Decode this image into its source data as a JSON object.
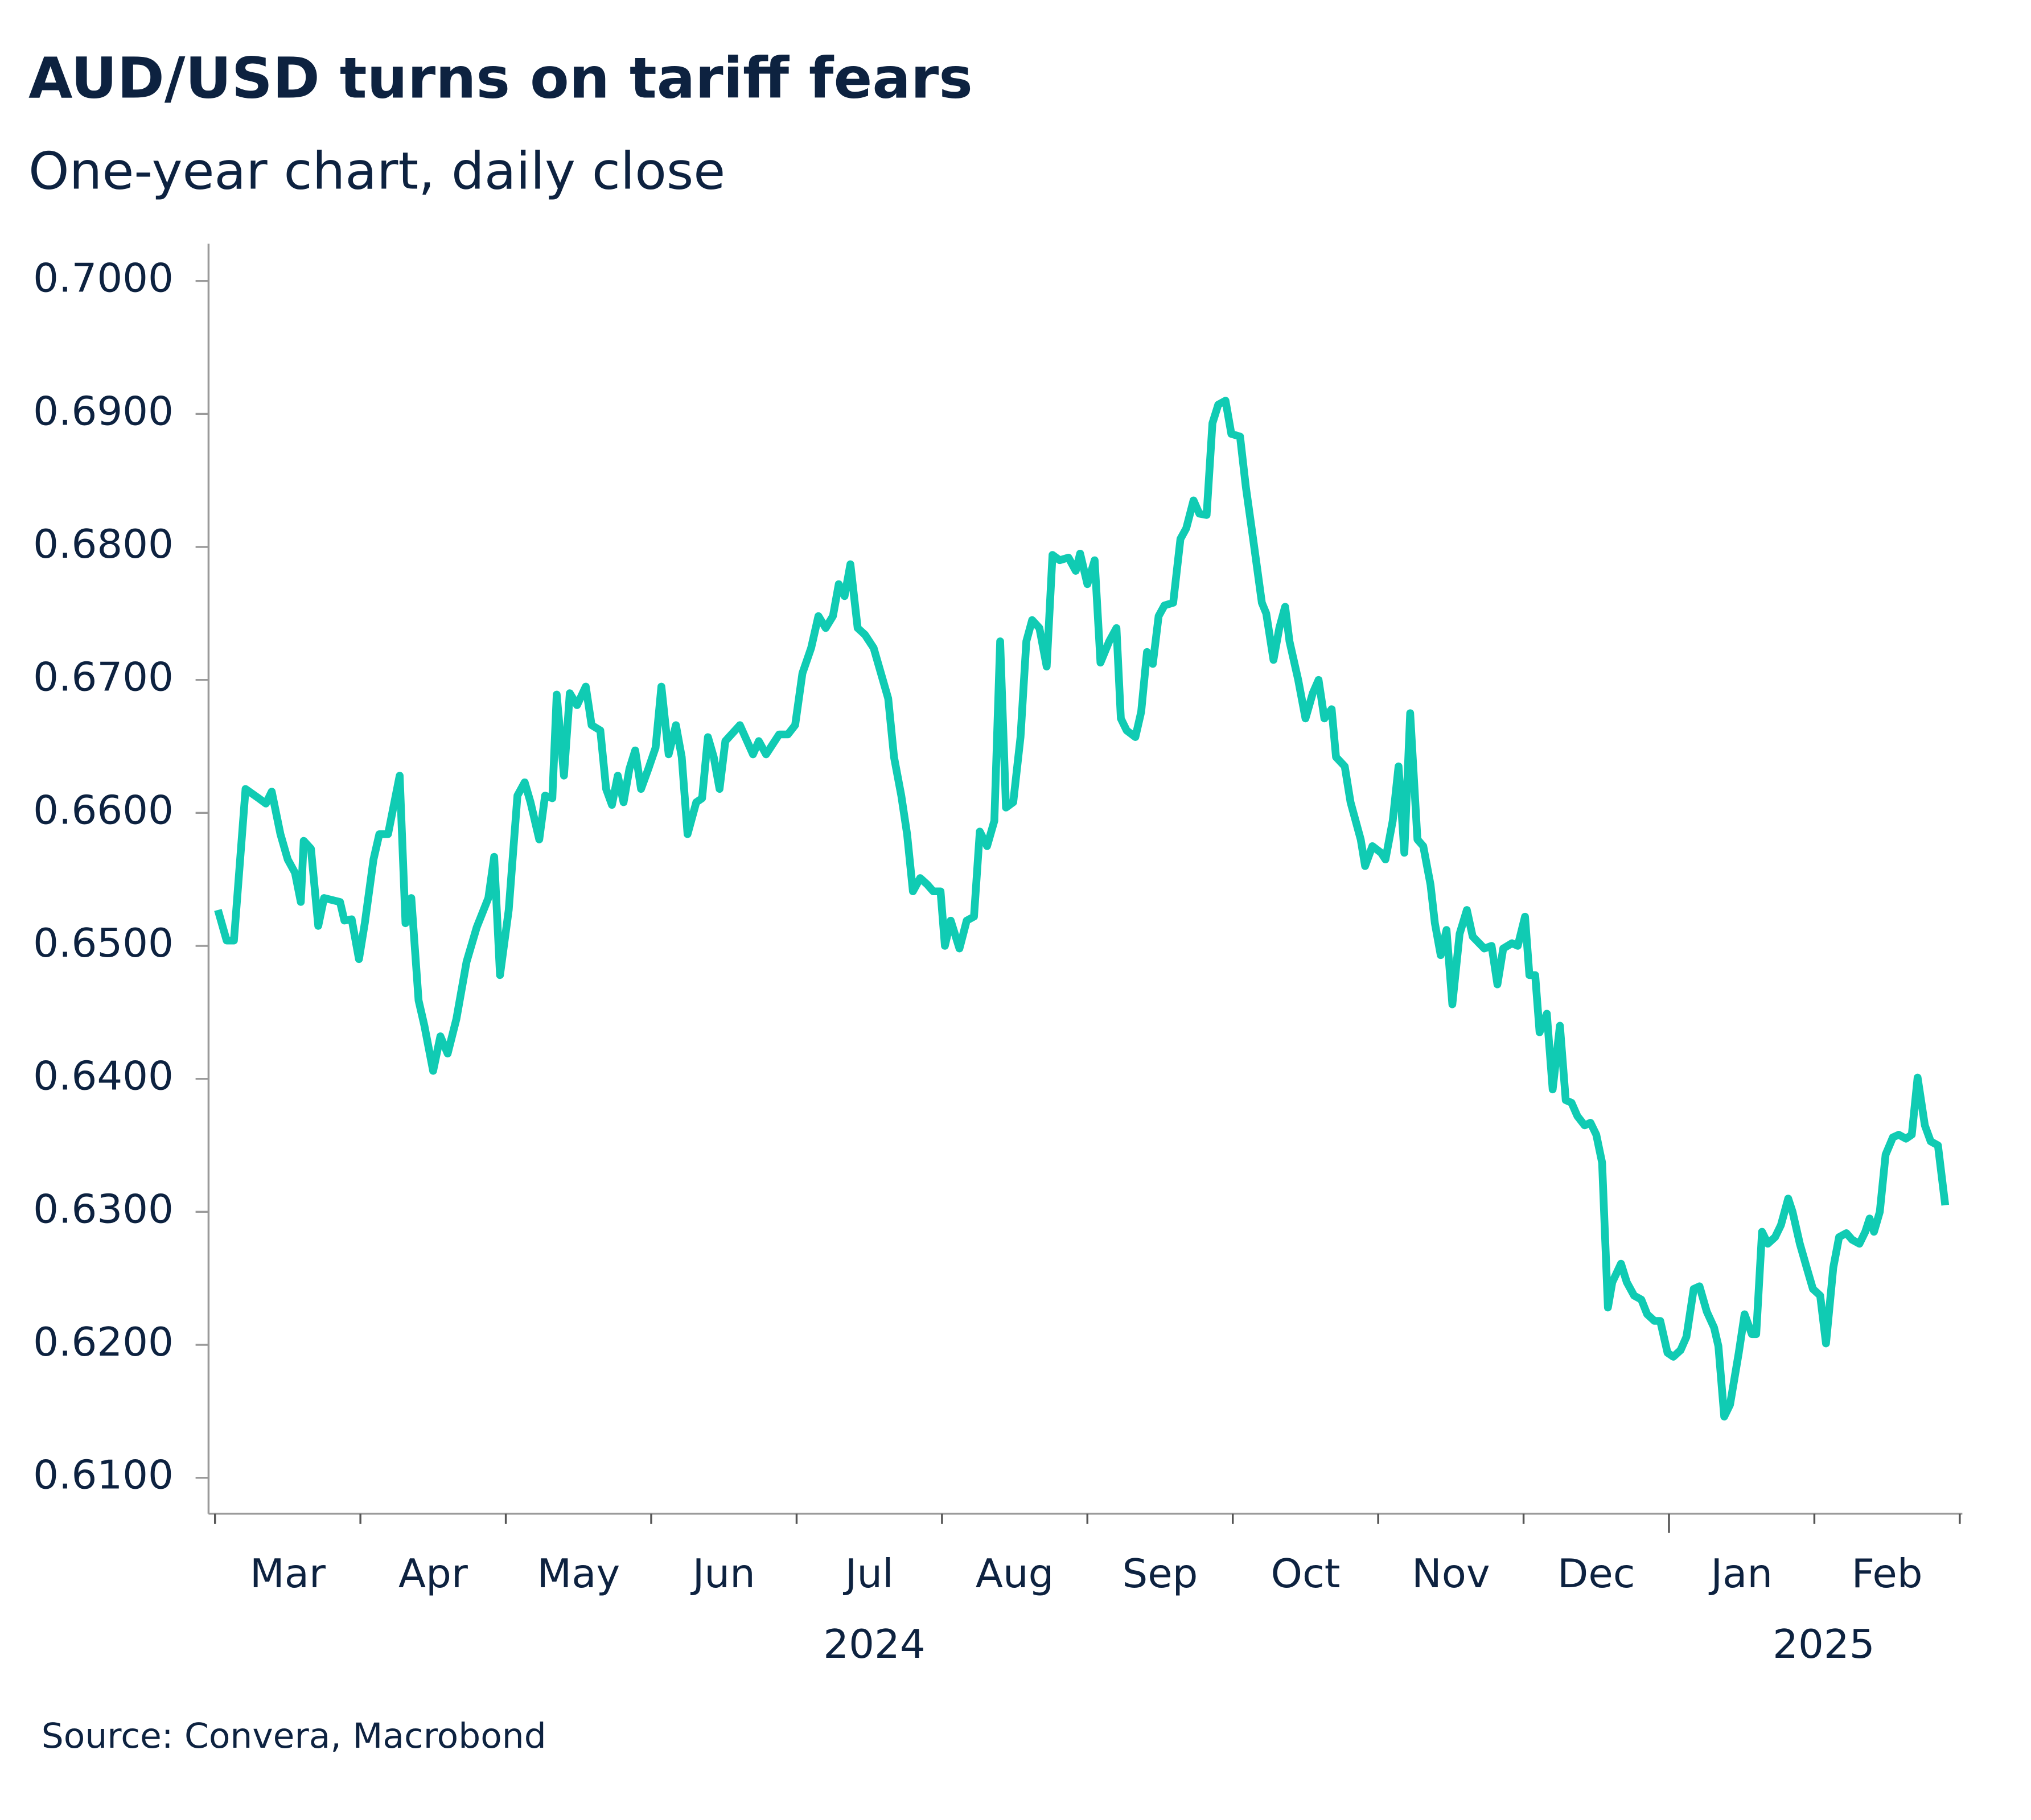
{
  "chart_data": {
    "type": "line",
    "title": "AUD/USD turns on tariff fears",
    "subtitle": "One-year chart, daily close",
    "source": "Source: Convera, Macrobond",
    "color": "#10cbb3",
    "x": [
      0.02,
      0.08,
      0.13,
      0.21,
      0.3,
      0.35,
      0.39,
      0.45,
      0.5,
      0.55,
      0.59,
      0.61,
      0.66,
      0.71,
      0.75,
      0.86,
      0.89,
      0.94,
      0.99,
      1.03,
      1.09,
      1.13,
      1.19,
      1.27,
      1.31,
      1.35,
      1.4,
      1.44,
      1.5,
      1.55,
      1.6,
      1.66,
      1.73,
      1.8,
      1.88,
      1.92,
      1.96,
      2.02,
      2.08,
      2.13,
      2.17,
      2.23,
      2.27,
      2.32,
      2.35,
      2.4,
      2.44,
      2.49,
      2.55,
      2.59,
      2.65,
      2.69,
      2.73,
      2.77,
      2.81,
      2.85,
      2.89,
      2.93,
      2.98,
      3.03,
      3.07,
      3.12,
      3.17,
      3.21,
      3.25,
      3.31,
      3.35,
      3.39,
      3.43,
      3.47,
      3.51,
      3.61,
      3.7,
      3.74,
      3.79,
      3.88,
      3.94,
      3.99,
      4.04,
      4.1,
      4.15,
      4.2,
      4.25,
      4.29,
      4.33,
      4.37,
      4.42,
      4.47,
      4.53,
      4.58,
      4.63,
      4.67,
      4.72,
      4.76,
      4.8,
      4.85,
      4.9,
      4.94,
      4.99,
      5.02,
      5.06,
      5.12,
      5.17,
      5.22,
      5.26,
      5.31,
      5.36,
      5.4,
      5.44,
      5.49,
      5.54,
      5.58,
      5.62,
      5.67,
      5.72,
      5.76,
      5.81,
      5.87,
      5.92,
      5.95,
      6.0,
      6.05,
      6.09,
      6.15,
      6.2,
      6.23,
      6.27,
      6.33,
      6.37,
      6.41,
      6.45,
      6.49,
      6.53,
      6.59,
      6.64,
      6.68,
      6.73,
      6.77,
      6.82,
      6.86,
      6.9,
      6.95,
      6.99,
      7.05,
      7.09,
      7.14,
      7.2,
      7.23,
      7.28,
      7.32,
      7.36,
      7.39,
      7.45,
      7.5,
      7.55,
      7.59,
      7.63,
      7.68,
      7.71,
      7.77,
      7.81,
      7.88,
      7.91,
      7.96,
      8.02,
      8.05,
      8.1,
      8.14,
      8.18,
      8.22,
      8.27,
      8.31,
      8.36,
      8.39,
      8.43,
      8.47,
      8.51,
      8.56,
      8.61,
      8.65,
      8.73,
      8.78,
      8.82,
      8.86,
      8.92,
      8.96,
      9.01,
      9.04,
      9.08,
      9.11,
      9.16,
      9.2,
      9.25,
      9.29,
      9.33,
      9.37,
      9.42,
      9.46,
      9.5,
      9.54,
      9.58,
      9.61,
      9.67,
      9.71,
      9.76,
      9.81,
      9.85,
      9.9,
      9.94,
      9.99,
      10.03,
      10.08,
      10.12,
      10.17,
      10.21,
      10.26,
      10.31,
      10.34,
      10.38,
      10.42,
      10.48,
      10.52,
      10.57,
      10.6,
      10.64,
      10.68,
      10.73,
      10.77,
      10.82,
      10.85,
      10.9,
      10.95,
      10.99,
      11.04,
      11.08,
      11.13,
      11.17,
      11.22,
      11.26,
      11.31,
      11.35,
      11.38,
      11.41,
      11.45,
      11.49,
      11.54,
      11.58,
      11.63,
      11.67,
      11.71,
      11.76,
      11.8,
      11.85,
      11.9
    ],
    "values": [
      0.6527,
      0.6504,
      0.6504,
      0.6618,
      0.6611,
      0.6607,
      0.6616,
      0.6584,
      0.6565,
      0.6555,
      0.6533,
      0.6579,
      0.6573,
      0.6515,
      0.6536,
      0.6533,
      0.6519,
      0.652,
      0.649,
      0.6517,
      0.6565,
      0.6584,
      0.6584,
      0.6628,
      0.6517,
      0.6536,
      0.6459,
      0.644,
      0.6406,
      0.6432,
      0.6419,
      0.6445,
      0.6488,
      0.6514,
      0.6536,
      0.6567,
      0.6478,
      0.6527,
      0.6613,
      0.6623,
      0.6608,
      0.658,
      0.6613,
      0.6611,
      0.6689,
      0.6628,
      0.669,
      0.6681,
      0.6695,
      0.6666,
      0.6662,
      0.6618,
      0.6606,
      0.6628,
      0.6608,
      0.6633,
      0.6647,
      0.6618,
      0.6633,
      0.6649,
      0.6695,
      0.6644,
      0.6666,
      0.6642,
      0.6584,
      0.6608,
      0.6611,
      0.6657,
      0.6642,
      0.6618,
      0.6654,
      0.6666,
      0.6644,
      0.6654,
      0.6644,
      0.6659,
      0.6659,
      0.6666,
      0.6705,
      0.6724,
      0.6748,
      0.6739,
      0.6748,
      0.6772,
      0.6763,
      0.6787,
      0.6739,
      0.6734,
      0.6724,
      0.6705,
      0.6686,
      0.6642,
      0.6613,
      0.6584,
      0.6541,
      0.6551,
      0.6546,
      0.6541,
      0.6541,
      0.65,
      0.6519,
      0.6498,
      0.6519,
      0.6522,
      0.6586,
      0.6575,
      0.6594,
      0.6729,
      0.6604,
      0.6608,
      0.6657,
      0.6729,
      0.6745,
      0.6739,
      0.671,
      0.6794,
      0.679,
      0.6792,
      0.6782,
      0.6795,
      0.6772,
      0.679,
      0.6713,
      0.6729,
      0.6739,
      0.6671,
      0.6662,
      0.6657,
      0.6676,
      0.6721,
      0.6712,
      0.6748,
      0.6756,
      0.6758,
      0.6806,
      0.6814,
      0.6835,
      0.6825,
      0.6824,
      0.6893,
      0.6907,
      0.691,
      0.6885,
      0.6883,
      0.6845,
      0.6806,
      0.6758,
      0.675,
      0.6715,
      0.6739,
      0.6755,
      0.6729,
      0.67,
      0.6671,
      0.669,
      0.67,
      0.6671,
      0.6678,
      0.6642,
      0.6635,
      0.6608,
      0.658,
      0.656,
      0.6575,
      0.657,
      0.6565,
      0.6594,
      0.6635,
      0.657,
      0.6675,
      0.658,
      0.6575,
      0.6546,
      0.6517,
      0.6493,
      0.6512,
      0.6456,
      0.6509,
      0.6527,
      0.6507,
      0.6498,
      0.65,
      0.6471,
      0.6498,
      0.6502,
      0.65,
      0.6522,
      0.6478,
      0.6478,
      0.6435,
      0.6449,
      0.6392,
      0.644,
      0.6384,
      0.6382,
      0.6372,
      0.6365,
      0.6367,
      0.6358,
      0.6337,
      0.6228,
      0.6247,
      0.6261,
      0.6247,
      0.6237,
      0.6234,
      0.6223,
      0.6218,
      0.6218,
      0.6194,
      0.6191,
      0.6196,
      0.6206,
      0.6242,
      0.6244,
      0.6225,
      0.6213,
      0.6199,
      0.6146,
      0.6155,
      0.6194,
      0.6223,
      0.6208,
      0.6208,
      0.6285,
      0.6276,
      0.6281,
      0.629,
      0.631,
      0.63,
      0.6276,
      0.6257,
      0.6242,
      0.6237,
      0.6201,
      0.6258,
      0.6281,
      0.6284,
      0.6279,
      0.6276,
      0.6285,
      0.6295,
      0.6285,
      0.63,
      0.6343,
      0.6356,
      0.6358,
      0.6355,
      0.6358,
      0.6401,
      0.6365,
      0.6353,
      0.635,
      0.6305
    ],
    "xlim": [
      0,
      12
    ],
    "xticks": [
      {
        "value": 0.5,
        "label": "Mar"
      },
      {
        "value": 1.5,
        "label": "Apr"
      },
      {
        "value": 2.5,
        "label": "May"
      },
      {
        "value": 3.5,
        "label": "Jun"
      },
      {
        "value": 4.5,
        "label": "Jul"
      },
      {
        "value": 5.5,
        "label": "Aug"
      },
      {
        "value": 6.5,
        "label": "Sep"
      },
      {
        "value": 7.5,
        "label": "Oct"
      },
      {
        "value": 8.5,
        "label": "Nov"
      },
      {
        "value": 9.5,
        "label": "Dec"
      },
      {
        "value": 10.5,
        "label": "Jan"
      },
      {
        "value": 11.5,
        "label": "Feb"
      }
    ],
    "year_labels": [
      "2024",
      "2025"
    ],
    "ylim": [
      0.6073,
      0.7028
    ],
    "yticks": [
      {
        "value": 0.7,
        "label": "0.7000"
      },
      {
        "value": 0.69,
        "label": "0.6900"
      },
      {
        "value": 0.68,
        "label": "0.6800"
      },
      {
        "value": 0.67,
        "label": "0.6700"
      },
      {
        "value": 0.66,
        "label": "0.6600"
      },
      {
        "value": 0.65,
        "label": "0.6500"
      },
      {
        "value": 0.64,
        "label": "0.6400"
      },
      {
        "value": 0.63,
        "label": "0.6300"
      },
      {
        "value": 0.62,
        "label": "0.6200"
      },
      {
        "value": 0.61,
        "label": "0.6100"
      }
    ]
  }
}
